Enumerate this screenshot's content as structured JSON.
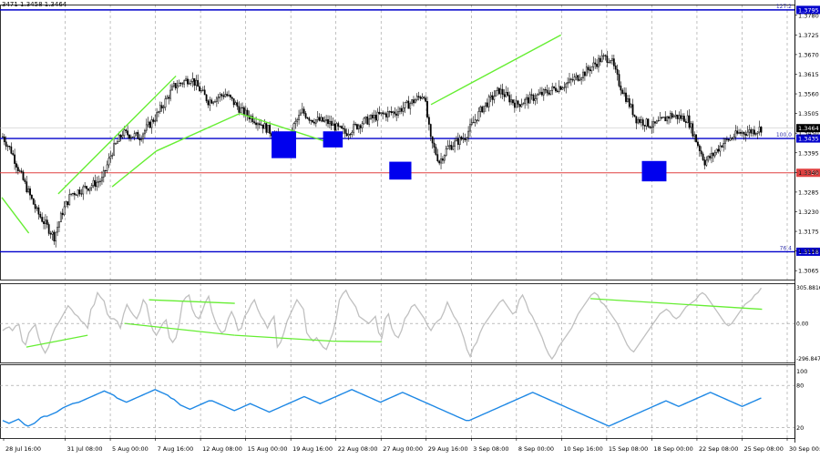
{
  "header": {
    "ohlc_text": "3471 1.3458 1.3464"
  },
  "colors": {
    "background": "#ffffff",
    "grid": "#999999",
    "candle": "#000000",
    "blue_level": "#0000cc",
    "red_level": "#e04040",
    "trendline": "#66ee33",
    "box": "#0000ee",
    "cci_line": "#c0c0c0",
    "rsi_line": "#1e88e5",
    "current_price_bg": "#000000"
  },
  "chart_data": [
    {
      "type": "candlestick",
      "title": "",
      "ylim": [
        1.304,
        1.381
      ],
      "y_ticks": [
        "1.3780",
        "1.3725",
        "1.3670",
        "1.3615",
        "1.3560",
        "1.3505",
        "1.3450",
        "1.3395",
        "1.3340",
        "1.3285",
        "1.3230",
        "1.3175",
        "1.3120",
        "1.3065"
      ],
      "x_ticks": [
        "28 Jul 16:00",
        "31 Jul 08:00",
        "5 Aug 00:00",
        "7 Aug 16:00",
        "12 Aug 08:00",
        "15 Aug 00:00",
        "19 Aug 16:00",
        "22 Aug 08:00",
        "27 Aug 00:00",
        "29 Aug 16:00",
        "3 Sep 08:00",
        "8 Sep 00:00",
        "10 Sep 16:00",
        "15 Sep 08:00",
        "18 Sep 00:00",
        "22 Sep 08:00",
        "25 Sep 08:00",
        "30 Sep 00:00"
      ],
      "path_points": [
        [
          0,
          1.344
        ],
        [
          5,
          1.34
        ],
        [
          10,
          1.334
        ],
        [
          20,
          1.323
        ],
        [
          30,
          1.316
        ],
        [
          35,
          1.323
        ],
        [
          40,
          1.328
        ],
        [
          50,
          1.33
        ],
        [
          58,
          1.332
        ],
        [
          64,
          1.34
        ],
        [
          70,
          1.345
        ],
        [
          80,
          1.344
        ],
        [
          90,
          1.35
        ],
        [
          100,
          1.358
        ],
        [
          110,
          1.3605
        ],
        [
          120,
          1.354
        ],
        [
          130,
          1.356
        ],
        [
          140,
          1.351
        ],
        [
          150,
          1.348
        ],
        [
          160,
          1.344
        ],
        [
          166,
          1.341
        ],
        [
          170,
          1.347
        ],
        [
          175,
          1.351
        ],
        [
          180,
          1.349
        ],
        [
          190,
          1.348
        ],
        [
          200,
          1.345
        ],
        [
          210,
          1.348
        ],
        [
          220,
          1.35
        ],
        [
          230,
          1.351
        ],
        [
          240,
          1.354
        ],
        [
          246,
          1.356
        ],
        [
          250,
          1.343
        ],
        [
          255,
          1.337
        ],
        [
          260,
          1.341
        ],
        [
          270,
          1.344
        ],
        [
          280,
          1.352
        ],
        [
          290,
          1.357
        ],
        [
          300,
          1.353
        ],
        [
          310,
          1.355
        ],
        [
          320,
          1.357
        ],
        [
          330,
          1.359
        ],
        [
          340,
          1.362
        ],
        [
          350,
          1.366
        ],
        [
          355,
          1.366
        ],
        [
          360,
          1.359
        ],
        [
          370,
          1.349
        ],
        [
          380,
          1.347
        ],
        [
          390,
          1.35
        ],
        [
          400,
          1.349
        ],
        [
          405,
          1.343
        ],
        [
          410,
          1.337
        ],
        [
          415,
          1.339
        ],
        [
          420,
          1.342
        ],
        [
          430,
          1.345
        ],
        [
          440,
          1.3458
        ],
        [
          443,
          1.3464
        ]
      ],
      "last_index": 443,
      "levels": [
        {
          "name": "fib-127.2",
          "value": 1.3795,
          "color": "#0000cc",
          "fib_label": "127.2",
          "price_label": "1.3795"
        },
        {
          "name": "fib-100",
          "value": 1.3435,
          "color": "#0000cc",
          "fib_label": "100.0",
          "price_label": "1.3435"
        },
        {
          "name": "red-level",
          "value": 1.3339,
          "color": "#e04040",
          "fib_label": "",
          "price_label": "1.3339"
        },
        {
          "name": "fib-76.4",
          "value": 1.3118,
          "color": "#0000cc",
          "fib_label": "76.4",
          "price_label": "1.3118"
        }
      ],
      "current_price": {
        "value": 1.3464,
        "label": "1.3464"
      },
      "trendlines": [
        [
          [
            0,
            1.327
          ],
          [
            11,
            1.317
          ]
        ],
        [
          [
            23,
            1.328
          ],
          [
            71,
            1.361
          ]
        ],
        [
          [
            45,
            1.33
          ],
          [
            63,
            1.34
          ]
        ],
        [
          [
            63,
            1.34
          ],
          [
            97,
            1.3505
          ]
        ],
        [
          [
            97,
            1.3505
          ],
          [
            135,
            1.342
          ]
        ],
        [
          [
            175,
            1.353
          ],
          [
            228,
            1.3725
          ]
        ]
      ],
      "boxes": [
        {
          "x": [
            110,
            120
          ],
          "y": [
            1.338,
            1.3455
          ]
        },
        {
          "x": [
            131,
            139
          ],
          "y": [
            1.341,
            1.3455
          ]
        },
        {
          "x": [
            158,
            167
          ],
          "y": [
            1.332,
            1.337
          ]
        },
        {
          "x": [
            261,
            271
          ],
          "y": [
            1.3315,
            1.3372
          ]
        }
      ]
    },
    {
      "type": "line",
      "title": "",
      "ylim": [
        -330,
        340
      ],
      "y_ticks": [
        "305.8816",
        "0.00",
        "-296.8474"
      ],
      "tick_values": [
        305.8816,
        0,
        -296.8474
      ],
      "series": [
        {
          "values": [
            -60,
            -40,
            -30,
            -60,
            -20,
            -10,
            -150,
            -180,
            -80,
            -40,
            -10,
            -120,
            -200,
            -250,
            -200,
            -110,
            -40,
            0,
            50,
            100,
            150,
            120,
            80,
            60,
            20,
            0,
            -40,
            120,
            160,
            260,
            220,
            190,
            80,
            40,
            40,
            20,
            -40,
            80,
            160,
            110,
            70,
            40,
            100,
            200,
            160,
            20,
            -60,
            -100,
            -50,
            0,
            30,
            -120,
            -160,
            -120,
            0,
            180,
            220,
            240,
            120,
            60,
            40,
            100,
            180,
            230,
            100,
            20,
            -40,
            -80,
            -60,
            40,
            100,
            40,
            -60,
            -40,
            60,
            100,
            160,
            200,
            120,
            60,
            20,
            -40,
            20,
            60,
            -200,
            -160,
            -80,
            20,
            80,
            140,
            200,
            160,
            120,
            -80,
            -120,
            -150,
            -120,
            -160,
            -200,
            -220,
            -150,
            -80,
            40,
            200,
            250,
            280,
            220,
            180,
            140,
            60,
            40,
            20,
            0,
            30,
            60,
            -80,
            -120,
            40,
            80,
            -40,
            -100,
            -120,
            -60,
            40,
            80,
            140,
            160,
            120,
            80,
            40,
            -20,
            -60,
            -10,
            20,
            40,
            100,
            180,
            120,
            60,
            20,
            -40,
            -120,
            -220,
            -280,
            -200,
            -160,
            -80,
            -20,
            20,
            60,
            100,
            140,
            180,
            200,
            160,
            120,
            80,
            100,
            200,
            240,
            180,
            100,
            60,
            0,
            -60,
            -120,
            -200,
            -260,
            -300,
            -260,
            -200,
            -160,
            -120,
            -80,
            -40,
            20,
            80,
            120,
            160,
            200,
            240,
            260,
            240,
            180,
            160,
            120,
            80,
            40,
            0,
            -60,
            -120,
            -180,
            -220,
            -240,
            -200,
            -160,
            -120,
            -80,
            -40,
            0,
            40,
            80,
            100,
            120,
            100,
            60,
            40,
            60,
            100,
            140,
            160,
            180,
            200,
            240,
            260,
            240,
            200,
            160,
            120,
            80,
            40,
            0,
            -20,
            0,
            40,
            80,
            120,
            160,
            180,
            200,
            240,
            260,
            300
          ]
        }
      ],
      "trendlines": [
        [
          [
            10,
            -200
          ],
          [
            35,
            -100
          ]
        ],
        [
          [
            60,
            200
          ],
          [
            95,
            170
          ]
        ],
        [
          [
            50,
            0
          ],
          [
            95,
            -100
          ]
        ],
        [
          [
            95,
            -100
          ],
          [
            135,
            -150
          ]
        ],
        [
          [
            135,
            -150
          ],
          [
            155,
            -155
          ]
        ],
        [
          [
            240,
            210
          ],
          [
            310,
            120
          ]
        ]
      ]
    },
    {
      "type": "line",
      "title": "",
      "ylim": [
        5,
        110
      ],
      "y_ticks": [
        "100",
        "80",
        "20"
      ],
      "tick_values": [
        100,
        80,
        20
      ],
      "series": [
        {
          "values": [
            30,
            28,
            26,
            28,
            30,
            32,
            28,
            24,
            22,
            24,
            26,
            30,
            34,
            36,
            36,
            38,
            40,
            42,
            45,
            48,
            50,
            52,
            54,
            55,
            56,
            58,
            60,
            62,
            64,
            66,
            68,
            70,
            72,
            70,
            68,
            66,
            62,
            60,
            58,
            56,
            58,
            60,
            62,
            64,
            66,
            68,
            70,
            72,
            74,
            72,
            70,
            68,
            66,
            62,
            60,
            56,
            52,
            50,
            48,
            46,
            48,
            50,
            52,
            54,
            56,
            58,
            58,
            56,
            54,
            52,
            50,
            48,
            46,
            44,
            46,
            48,
            50,
            52,
            54,
            52,
            50,
            48,
            46,
            44,
            42,
            44,
            46,
            48,
            50,
            52,
            54,
            56,
            58,
            60,
            62,
            64,
            62,
            60,
            58,
            56,
            54,
            56,
            58,
            60,
            62,
            64,
            66,
            68,
            70,
            72,
            74,
            72,
            70,
            68,
            66,
            64,
            62,
            60,
            58,
            56,
            58,
            60,
            62,
            64,
            66,
            68,
            70,
            68,
            66,
            64,
            62,
            60,
            58,
            56,
            54,
            52,
            50,
            48,
            46,
            44,
            42,
            40,
            38,
            36,
            34,
            32,
            30,
            30,
            32,
            34,
            36,
            38,
            40,
            42,
            44,
            46,
            48,
            50,
            52,
            54,
            56,
            58,
            60,
            62,
            64,
            66,
            68,
            70,
            68,
            66,
            64,
            62,
            60,
            58,
            56,
            54,
            52,
            50,
            48,
            46,
            44,
            42,
            40,
            38,
            36,
            34,
            32,
            30,
            28,
            26,
            24,
            22,
            24,
            26,
            28,
            30,
            32,
            34,
            36,
            38,
            40,
            42,
            44,
            46,
            48,
            50,
            52,
            54,
            56,
            58,
            56,
            54,
            52,
            50,
            52,
            54,
            56,
            58,
            60,
            62,
            64,
            66,
            68,
            70,
            68,
            66,
            64,
            62,
            60,
            58,
            56,
            54,
            52,
            50,
            52,
            54,
            56,
            58,
            60,
            62
          ]
        }
      ]
    }
  ]
}
